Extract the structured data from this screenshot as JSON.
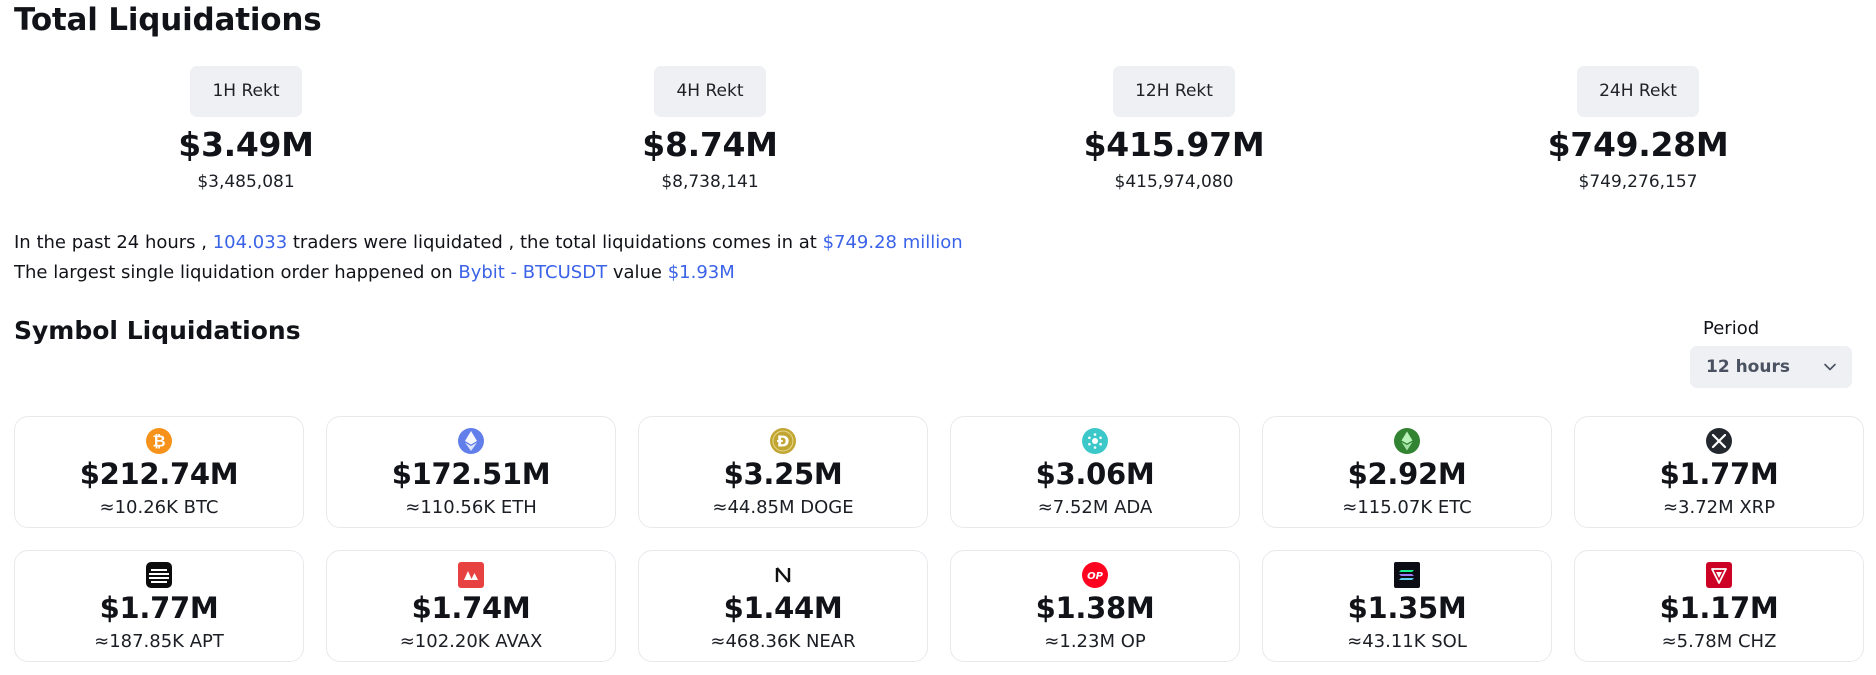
{
  "page_title": "Total Liquidations",
  "stats": [
    {
      "label": "1H Rekt",
      "short": "$3.49M",
      "exact": "$3,485,081"
    },
    {
      "label": "4H Rekt",
      "short": "$8.74M",
      "exact": "$8,738,141"
    },
    {
      "label": "12H Rekt",
      "short": "$415.97M",
      "exact": "$415,974,080"
    },
    {
      "label": "24H Rekt",
      "short": "$749.28M",
      "exact": "$749,276,157"
    }
  ],
  "summary": {
    "line1": {
      "t1": "In the past 24 hours , ",
      "traders": "104.033",
      "t2": " traders were liquidated , the total liquidations comes in at ",
      "total": "$749.28 million"
    },
    "line2": {
      "t1": "The largest single liquidation order happened on ",
      "exchange": "Bybit - BTCUSDT",
      "t2": " value ",
      "value": "$1.93M"
    }
  },
  "section_title": "Symbol Liquidations",
  "period": {
    "label": "Period",
    "selected": "12 hours"
  },
  "colors": {
    "accent": "#3b63e8",
    "badge_bg": "#eef0f3"
  },
  "symbols": [
    {
      "amount": "$212.74M",
      "qty": "≈10.26K BTC",
      "icon": "btc-icon"
    },
    {
      "amount": "$172.51M",
      "qty": "≈110.56K ETH",
      "icon": "eth-icon"
    },
    {
      "amount": "$3.25M",
      "qty": "≈44.85M DOGE",
      "icon": "doge-icon"
    },
    {
      "amount": "$3.06M",
      "qty": "≈7.52M ADA",
      "icon": "ada-icon"
    },
    {
      "amount": "$2.92M",
      "qty": "≈115.07K ETC",
      "icon": "etc-icon"
    },
    {
      "amount": "$1.77M",
      "qty": "≈3.72M XRP",
      "icon": "xrp-icon"
    },
    {
      "amount": "$1.77M",
      "qty": "≈187.85K APT",
      "icon": "apt-icon"
    },
    {
      "amount": "$1.74M",
      "qty": "≈102.20K AVAX",
      "icon": "avax-icon"
    },
    {
      "amount": "$1.44M",
      "qty": "≈468.36K NEAR",
      "icon": "near-icon"
    },
    {
      "amount": "$1.38M",
      "qty": "≈1.23M OP",
      "icon": "op-icon"
    },
    {
      "amount": "$1.35M",
      "qty": "≈43.11K SOL",
      "icon": "sol-icon"
    },
    {
      "amount": "$1.17M",
      "qty": "≈5.78M CHZ",
      "icon": "chz-icon"
    }
  ]
}
